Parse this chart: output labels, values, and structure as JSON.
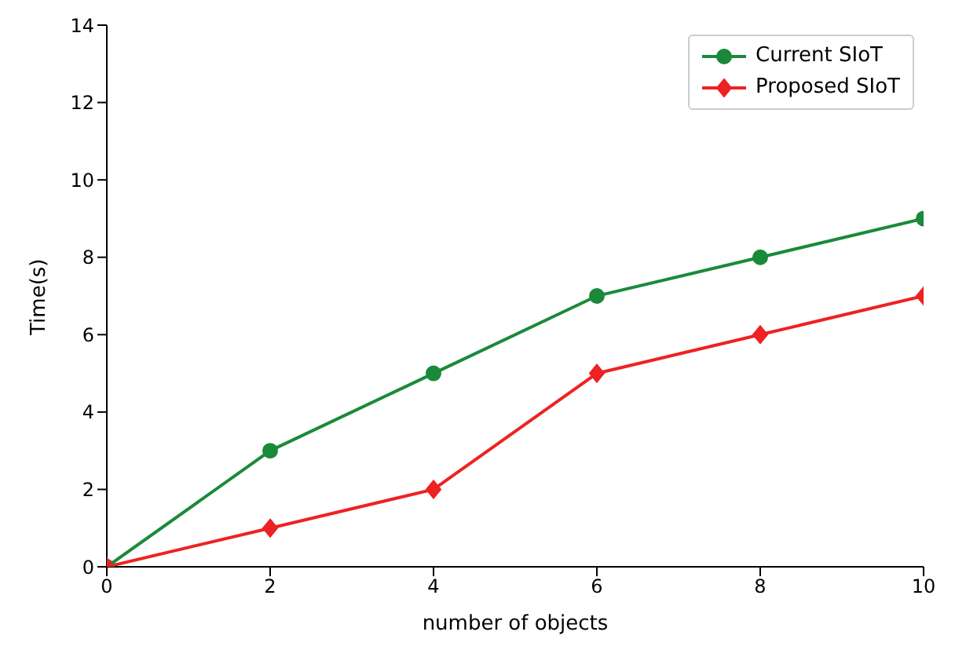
{
  "chart_data": {
    "type": "line",
    "xlabel": "number of objects",
    "ylabel": "Time(s)",
    "x": [
      0,
      2,
      4,
      6,
      8,
      10
    ],
    "series": [
      {
        "name": "Current SIoT",
        "color": "#1a8a3a",
        "values": [
          0,
          3,
          5,
          7,
          8,
          9
        ],
        "marker": "circle"
      },
      {
        "name": "Proposed SIoT",
        "color": "#ee2222",
        "values": [
          0,
          1,
          2,
          5,
          6,
          7
        ],
        "marker": "diamond"
      }
    ],
    "xlim": [
      0,
      10
    ],
    "xticks": [
      0,
      2,
      4,
      6,
      8,
      10
    ],
    "ylim": [
      0,
      14
    ],
    "yticks": [
      0,
      2,
      4,
      6,
      8,
      10,
      12,
      14
    ],
    "grid": false,
    "legend": "top right",
    "line_style": "solid"
  }
}
